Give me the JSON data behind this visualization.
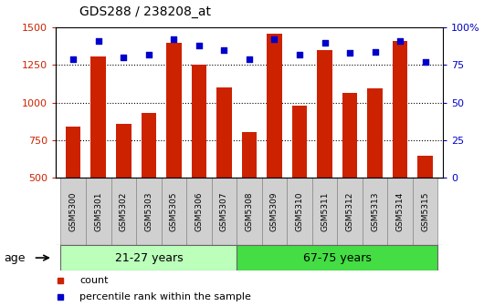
{
  "title": "GDS288 / 238208_at",
  "categories": [
    "GSM5300",
    "GSM5301",
    "GSM5302",
    "GSM5303",
    "GSM5305",
    "GSM5306",
    "GSM5307",
    "GSM5308",
    "GSM5309",
    "GSM5310",
    "GSM5311",
    "GSM5312",
    "GSM5313",
    "GSM5314",
    "GSM5315"
  ],
  "counts": [
    840,
    1305,
    860,
    930,
    1400,
    1250,
    1100,
    800,
    1460,
    980,
    1350,
    1065,
    1095,
    1410,
    645
  ],
  "percentiles": [
    79,
    91,
    80,
    82,
    92,
    88,
    85,
    79,
    92,
    82,
    90,
    83,
    84,
    91,
    77
  ],
  "group1_label": "21-27 years",
  "group2_label": "67-75 years",
  "group1_count": 7,
  "group2_count": 8,
  "age_label": "age",
  "bar_color": "#cc2200",
  "dot_color": "#0000cc",
  "bar_bottom": 500,
  "ylim_left": [
    500,
    1500
  ],
  "ylim_right": [
    0,
    100
  ],
  "yticks_left": [
    500,
    750,
    1000,
    1250,
    1500
  ],
  "yticks_right": [
    0,
    25,
    50,
    75,
    100
  ],
  "grid_vals": [
    750,
    1000,
    1250
  ],
  "group1_color": "#bbffbb",
  "group2_color": "#44dd44",
  "legend_count_label": "count",
  "legend_pct_label": "percentile rank within the sample"
}
